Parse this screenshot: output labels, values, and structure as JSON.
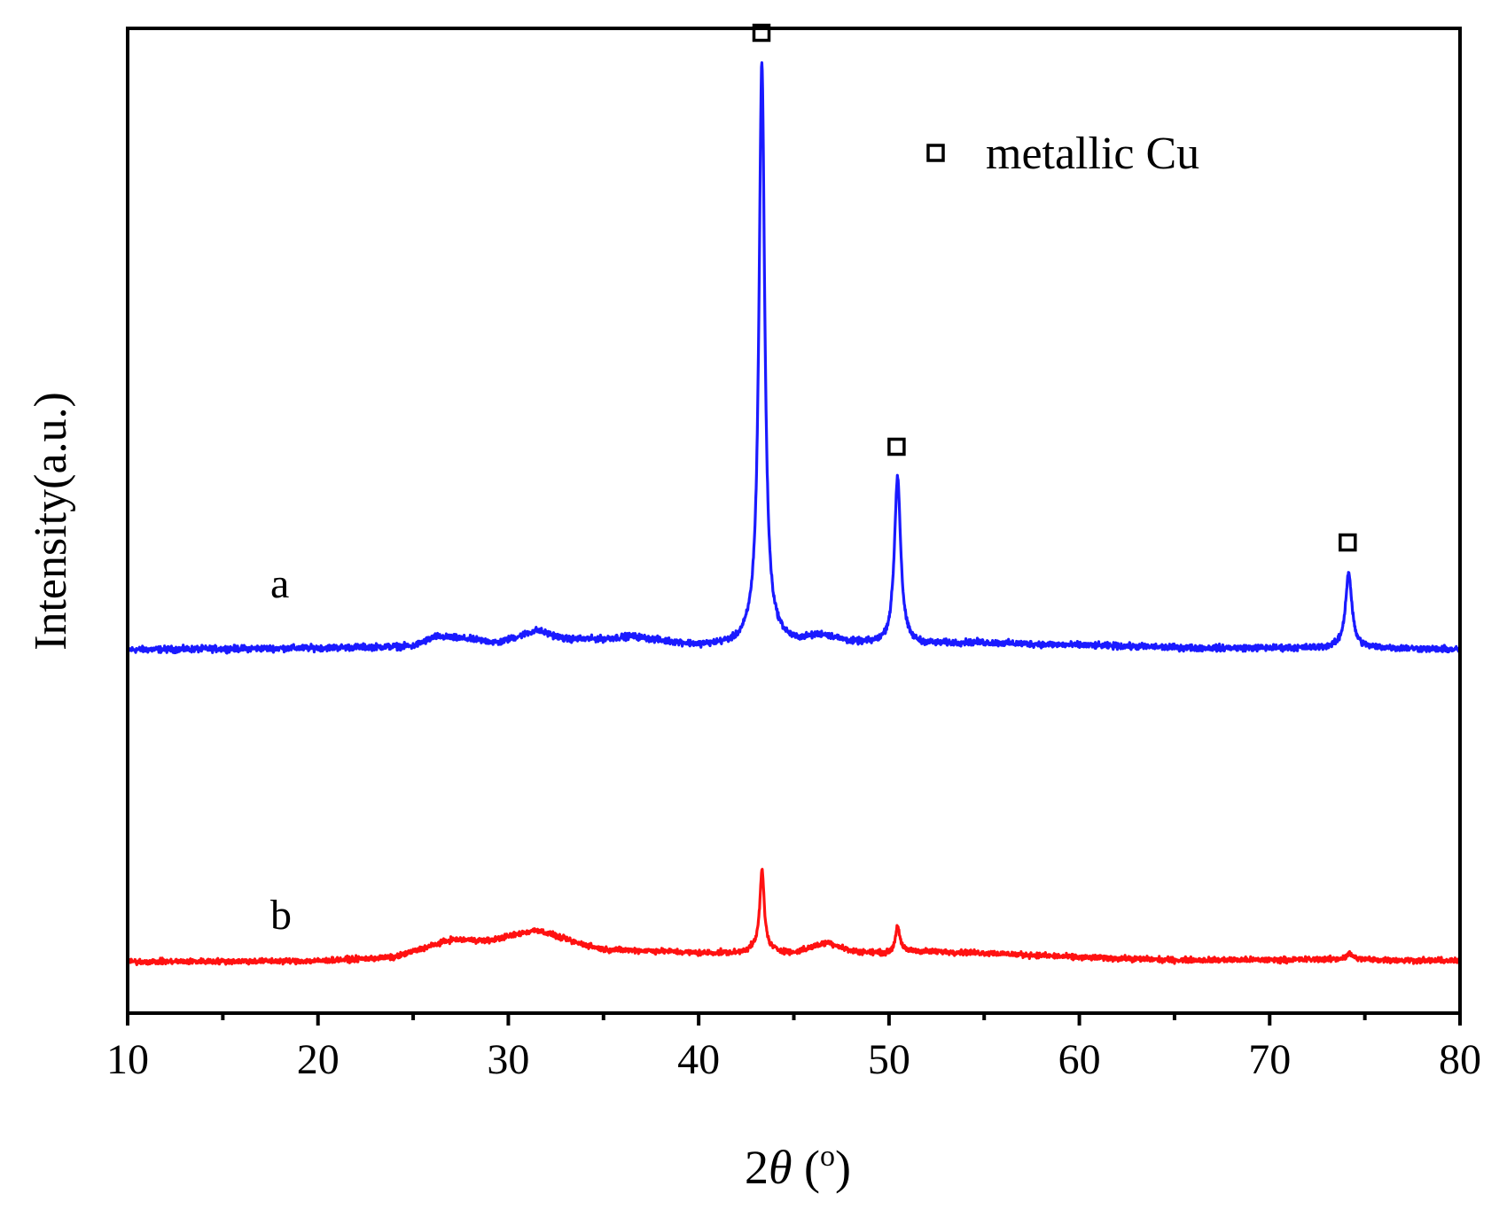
{
  "chart_data": {
    "type": "line",
    "xlabel_prefix": "2",
    "xlabel_symbol": "θ",
    "xlabel_unit_open": " (",
    "xlabel_unit_mark": "o",
    "xlabel_unit_close": ")",
    "ylabel": "Intensity(a.u.)",
    "xlim": [
      10,
      80
    ],
    "xticks": [
      10,
      20,
      30,
      40,
      50,
      60,
      70,
      80
    ],
    "minor_step": 5,
    "grid": false,
    "legend": {
      "marker": "open-square",
      "label": "metallic Cu",
      "placement": "top-right"
    },
    "peak_markers": [
      43.3,
      50.4,
      74.1
    ],
    "series": [
      {
        "name": "a",
        "color": "#1a1aff",
        "noise": 3.5,
        "baseline": [
          [
            10,
            0
          ],
          [
            20,
            2
          ],
          [
            25,
            4
          ],
          [
            26.2,
            15
          ],
          [
            28,
            12
          ],
          [
            29.5,
            8
          ],
          [
            31.5,
            22
          ],
          [
            33,
            12
          ],
          [
            35,
            12
          ],
          [
            36.5,
            15
          ],
          [
            38,
            10
          ],
          [
            40,
            5
          ],
          [
            42,
            6
          ],
          [
            42.8,
            12
          ],
          [
            44,
            12
          ],
          [
            45,
            8
          ],
          [
            46.5,
            16
          ],
          [
            48,
            8
          ],
          [
            50,
            5
          ],
          [
            51,
            5
          ],
          [
            54.5,
            8
          ],
          [
            58,
            6
          ],
          [
            62,
            4
          ],
          [
            66,
            2
          ],
          [
            70,
            2
          ],
          [
            72,
            2
          ],
          [
            76,
            2
          ],
          [
            80,
            0
          ]
        ],
        "peaks": [
          [
            43.32,
            650,
            0.18
          ],
          [
            50.45,
            190,
            0.2
          ],
          [
            74.15,
            85,
            0.2
          ]
        ]
      },
      {
        "name": "b",
        "color": "#ff1111",
        "noise": 3.0,
        "baseline": [
          [
            10,
            0
          ],
          [
            20,
            1
          ],
          [
            24,
            5
          ],
          [
            25.5,
            15
          ],
          [
            27,
            25
          ],
          [
            29,
            24
          ],
          [
            31.5,
            36
          ],
          [
            33.5,
            22
          ],
          [
            35,
            14
          ],
          [
            38,
            12
          ],
          [
            40,
            10
          ],
          [
            42,
            10
          ],
          [
            43,
            14
          ],
          [
            44,
            12
          ],
          [
            45,
            10
          ],
          [
            46.8,
            22
          ],
          [
            48,
            12
          ],
          [
            50,
            9
          ],
          [
            51,
            12
          ],
          [
            55,
            10
          ],
          [
            60,
            5
          ],
          [
            65,
            2
          ],
          [
            70,
            2
          ],
          [
            74,
            3
          ],
          [
            76,
            2
          ],
          [
            80,
            1
          ]
        ],
        "peaks": [
          [
            43.33,
            90,
            0.14
          ],
          [
            50.45,
            30,
            0.14
          ],
          [
            74.2,
            6,
            0.2
          ]
        ]
      }
    ]
  }
}
